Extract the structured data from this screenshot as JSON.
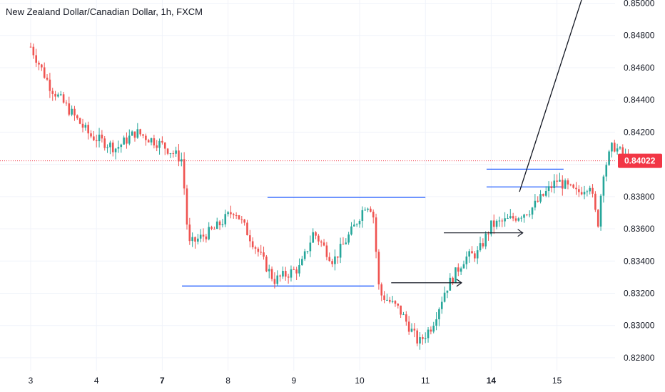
{
  "chart_data": {
    "type": "candlestick",
    "title": "New Zealand Dollar/Canadian Dollar, 1h, FXCM",
    "last_price": "0.84022",
    "colors": {
      "up": "#26a69a",
      "down": "#ef5350",
      "last_price": "#f23645",
      "level_line": "#2962ff",
      "arrow": "#131722",
      "grid": "#f0f3fa"
    },
    "y_axis": {
      "range": [
        0.8272,
        0.8502
      ],
      "tick_values": [
        0.828,
        0.83,
        0.832,
        0.834,
        0.836,
        0.838,
        0.84,
        0.842,
        0.844,
        0.846,
        0.848,
        0.85
      ],
      "tick_labels": [
        "0.82800",
        "0.83000",
        "0.83200",
        "0.83400",
        "0.83600",
        "0.83800",
        "0.84000",
        "0.84200",
        "0.84400",
        "0.84600",
        "0.84800",
        "0.85000"
      ]
    },
    "x_axis": {
      "labels": [
        "3",
        "4",
        "7",
        "8",
        "9",
        "10",
        "11",
        "14",
        "15"
      ],
      "bold_labels": [
        "7",
        "14"
      ],
      "positions": [
        0,
        1,
        2,
        3,
        4,
        5,
        6,
        7,
        8
      ]
    },
    "key_prices": [
      {
        "t": 0.0,
        "p": 0.8473
      },
      {
        "t": 0.3,
        "p": 0.8448
      },
      {
        "t": 0.9,
        "p": 0.8418
      },
      {
        "t": 1.3,
        "p": 0.841
      },
      {
        "t": 1.6,
        "p": 0.842
      },
      {
        "t": 2.0,
        "p": 0.8412
      },
      {
        "t": 2.3,
        "p": 0.8403
      },
      {
        "t": 2.4,
        "p": 0.835
      },
      {
        "t": 2.8,
        "p": 0.836
      },
      {
        "t": 3.1,
        "p": 0.8372
      },
      {
        "t": 3.4,
        "p": 0.835
      },
      {
        "t": 3.7,
        "p": 0.8328
      },
      {
        "t": 4.1,
        "p": 0.8336
      },
      {
        "t": 4.3,
        "p": 0.8358
      },
      {
        "t": 4.6,
        "p": 0.834
      },
      {
        "t": 4.9,
        "p": 0.836
      },
      {
        "t": 5.1,
        "p": 0.8376
      },
      {
        "t": 5.2,
        "p": 0.8372
      },
      {
        "t": 5.3,
        "p": 0.832
      },
      {
        "t": 5.6,
        "p": 0.831
      },
      {
        "t": 5.9,
        "p": 0.8289
      },
      {
        "t": 6.1,
        "p": 0.83
      },
      {
        "t": 6.3,
        "p": 0.8322
      },
      {
        "t": 6.6,
        "p": 0.8342
      },
      {
        "t": 6.8,
        "p": 0.8345
      },
      {
        "t": 7.0,
        "p": 0.8362
      },
      {
        "t": 7.3,
        "p": 0.8366
      },
      {
        "t": 7.6,
        "p": 0.8372
      },
      {
        "t": 8.0,
        "p": 0.839
      },
      {
        "t": 8.3,
        "p": 0.8382
      },
      {
        "t": 8.5,
        "p": 0.8388
      },
      {
        "t": 8.62,
        "p": 0.8362
      },
      {
        "t": 8.7,
        "p": 0.8395
      },
      {
        "t": 8.85,
        "p": 0.8412
      },
      {
        "t": 9.1,
        "p": 0.8402
      }
    ],
    "levels": [
      {
        "x0": 2.3,
        "x1": 5.22,
        "price": 0.83245,
        "color": "#2962ff"
      },
      {
        "x0": 3.6,
        "x1": 6.0,
        "price": 0.83795,
        "color": "#2962ff"
      },
      {
        "x0": 6.93,
        "x1": 8.1,
        "price": 0.8397,
        "color": "#2962ff"
      },
      {
        "x0": 6.93,
        "x1": 8.1,
        "price": 0.8386,
        "color": "#2962ff"
      }
    ],
    "arrows": [
      {
        "x0": 5.48,
        "x1": 6.55,
        "price": 0.83265
      },
      {
        "x0": 6.28,
        "x1": 7.48,
        "price": 0.83575
      }
    ],
    "trend_line": {
      "x0": 7.43,
      "y0": 0.8383,
      "x1": 8.5,
      "y1": 0.8518
    },
    "grid": true
  }
}
